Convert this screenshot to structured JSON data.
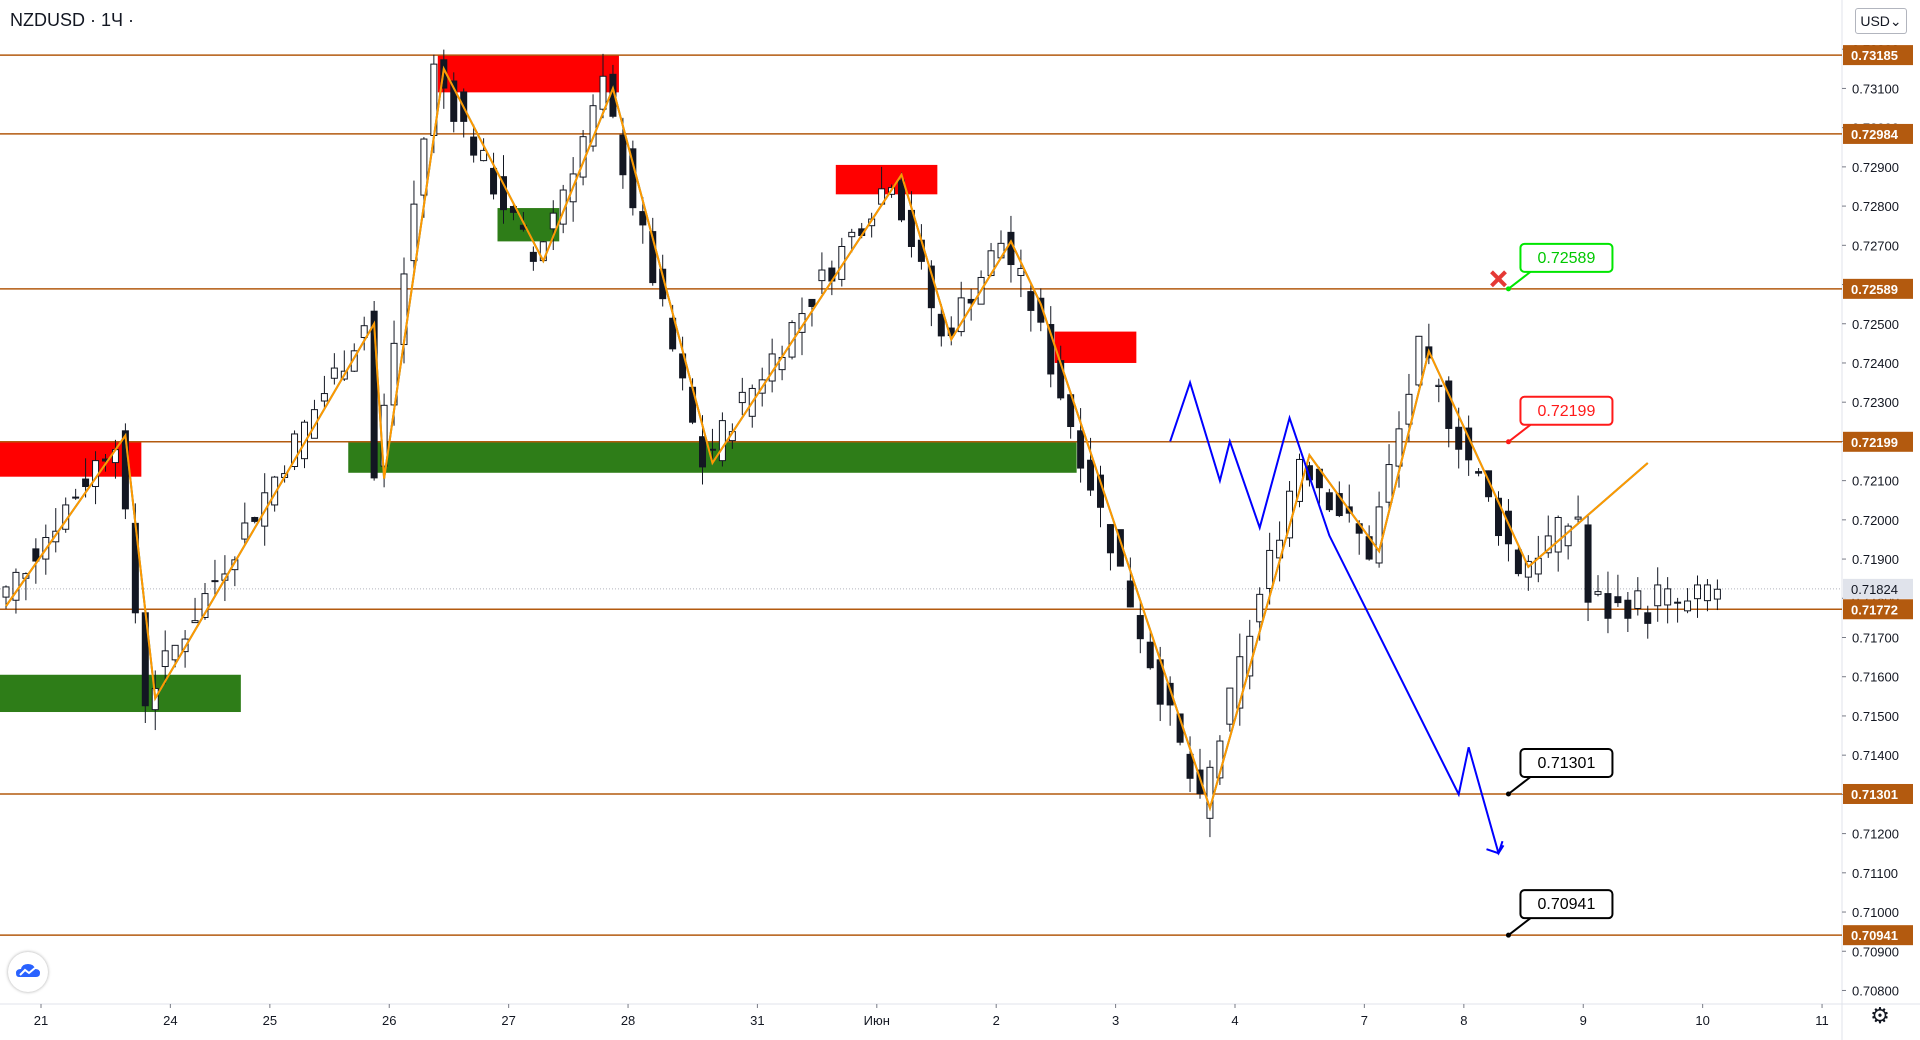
{
  "header": {
    "symbol": "NZDUSD · 1Ч ·",
    "currency_button": "USD⌄"
  },
  "chart_data": {
    "type": "candlestick",
    "symbol": "NZDUSD",
    "interval": "1Ч",
    "currency": "USD",
    "y_axis": {
      "range": [
        0.7074,
        0.733
      ],
      "ticks": [
        "0.70800",
        "0.70900",
        "0.71000",
        "0.71100",
        "0.71200",
        "0.71300",
        "0.71400",
        "0.71500",
        "0.71600",
        "0.71700",
        "0.71800",
        "0.71900",
        "0.72000",
        "0.72100",
        "0.72200",
        "0.72300",
        "0.72400",
        "0.72500",
        "0.72600",
        "0.72700",
        "0.72800",
        "0.72900",
        "0.73000",
        "0.73100",
        "0.73200"
      ]
    },
    "x_axis": {
      "tick_labels": [
        "21",
        "24",
        "25",
        "26",
        "27",
        "28",
        "31",
        "Июн",
        "2",
        "3",
        "4",
        "7",
        "8",
        "9",
        "10",
        "11"
      ],
      "tick_index": [
        0,
        13,
        23,
        35,
        47,
        59,
        72,
        84,
        96,
        108,
        120,
        133,
        143,
        155,
        167,
        179
      ]
    },
    "last_price": "0.71824",
    "levels": [
      {
        "label": "0.73185",
        "value": 0.73185
      },
      {
        "label": "0.72984",
        "value": 0.72984
      },
      {
        "label": "0.72589",
        "value": 0.72589
      },
      {
        "label": "0.72199",
        "value": 0.72199
      },
      {
        "label": "0.71772",
        "value": 0.71772
      },
      {
        "label": "0.71301",
        "value": 0.71301
      },
      {
        "label": "0.70941",
        "value": 0.70941
      }
    ],
    "callouts": [
      {
        "text": "0.72589",
        "value": 0.72589,
        "style": "green"
      },
      {
        "text": "0.72199",
        "value": 0.72199,
        "style": "red"
      },
      {
        "text": "0.71301",
        "value": 0.71301,
        "style": "black"
      },
      {
        "text": "0.70941",
        "value": 0.70941,
        "style": "black"
      }
    ],
    "resistance_zones": [
      {
        "i0": 0,
        "i1": 13,
        "y0": 0.7211,
        "y1": 0.722
      },
      {
        "i0": 44,
        "i1": 61,
        "y0": 0.7309,
        "y1": 0.73185
      },
      {
        "i0": 84,
        "i1": 93,
        "y0": 0.7283,
        "y1": 0.72905
      },
      {
        "i0": 106,
        "i1": 113,
        "y0": 0.724,
        "y1": 0.7248
      },
      {
        "i0": 50,
        "i1": 55,
        "y0": 0.7271,
        "y1": 0.72795
      }
    ],
    "support_zones": [
      {
        "i0": 0,
        "i1": 23,
        "y0": 0.7151,
        "y1": 0.71605
      },
      {
        "i0": 35,
        "i1": 107,
        "y0": 0.7212,
        "y1": 0.72199
      }
    ],
    "orange_path": [
      [
        0,
        0.7178
      ],
      [
        12,
        0.72215
      ],
      [
        15,
        0.71545
      ],
      [
        37,
        0.725
      ],
      [
        38,
        0.72105
      ],
      [
        44,
        0.7315
      ],
      [
        54,
        0.7266
      ],
      [
        61,
        0.731
      ],
      [
        71,
        0.72145
      ],
      [
        90,
        0.7288
      ],
      [
        95,
        0.7246
      ],
      [
        101,
        0.7271
      ],
      [
        104,
        0.7255
      ],
      [
        121,
        0.71265
      ],
      [
        131,
        0.72165
      ],
      [
        138,
        0.7192
      ],
      [
        143,
        0.7243
      ],
      [
        153,
        0.7188
      ],
      [
        165,
        0.72145
      ]
    ],
    "teal_path": [
      [
        0,
        0.7178
      ],
      [
        12,
        0.72215
      ],
      [
        15,
        0.71545
      ],
      [
        37,
        0.725
      ],
      [
        38,
        0.72105
      ],
      [
        44,
        0.7315
      ],
      [
        54,
        0.7266
      ],
      [
        61,
        0.731
      ],
      [
        71,
        0.72145
      ],
      [
        90,
        0.7288
      ],
      [
        95,
        0.7246
      ],
      [
        101,
        0.7271
      ],
      [
        104,
        0.7255
      ],
      [
        121,
        0.71265
      ],
      [
        131,
        0.72165
      ],
      [
        138,
        0.7192
      ],
      [
        143,
        0.7243
      ],
      [
        153,
        0.7188
      ],
      [
        165,
        0.72145
      ]
    ],
    "blue_projection": [
      [
        117,
        0.722
      ],
      [
        119,
        0.7235
      ],
      [
        122,
        0.721
      ],
      [
        123,
        0.722
      ],
      [
        126,
        0.7198
      ],
      [
        129,
        0.7226
      ],
      [
        133,
        0.7196
      ],
      [
        146,
        0.713
      ],
      [
        147,
        0.7142
      ],
      [
        150,
        0.7115
      ],
      [
        150.5,
        0.7117
      ]
    ],
    "candles": []
  },
  "colors": {
    "level": "#b35a0f",
    "resistance": "#ff0000",
    "support": "#2e7d18",
    "orange": "#ff9800",
    "teal": "#1b8c82",
    "blue": "#0000ff",
    "candle": "#131722"
  },
  "icons": {
    "logo": "tradingview-cloud-icon",
    "settings": "gear-icon",
    "cross": "x-mark-icon"
  }
}
